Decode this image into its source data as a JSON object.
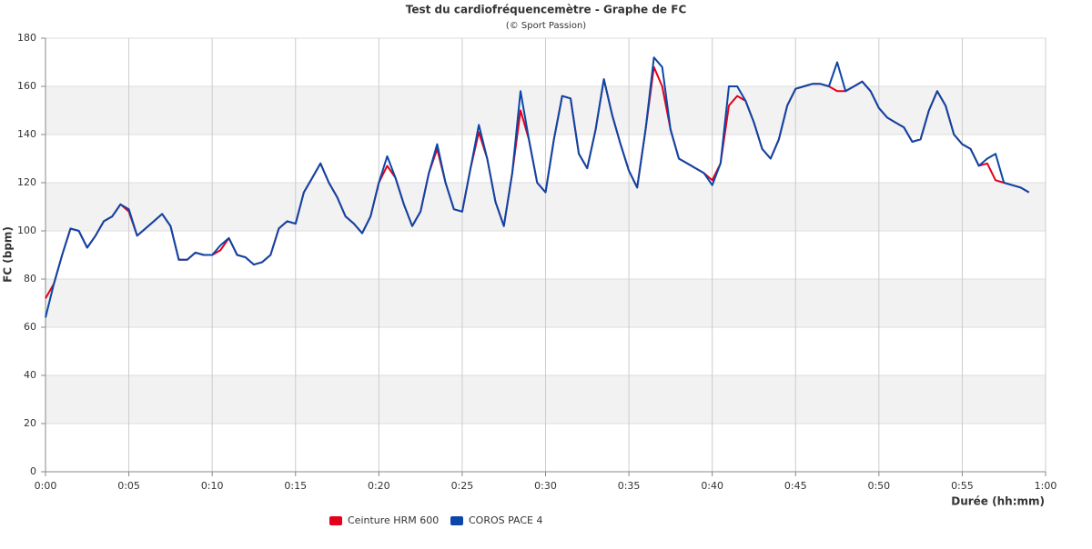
{
  "chart_data": {
    "type": "line",
    "title": "Test du cardiofréquencemètre - Graphe de FC",
    "subtitle": "(© Sport Passion)",
    "y_label": "FC (bpm)",
    "x_label": "Durée (hh:mm)",
    "x": [
      0,
      0.5,
      1,
      1.5,
      2,
      2.5,
      3,
      3.5,
      4,
      4.5,
      5,
      5.5,
      6,
      6.5,
      7,
      7.5,
      8,
      8.5,
      9,
      9.5,
      10,
      10.5,
      11,
      11.5,
      12,
      12.5,
      13,
      13.5,
      14,
      14.5,
      15,
      15.5,
      16,
      16.5,
      17,
      17.5,
      18,
      18.5,
      19,
      19.5,
      20,
      20.5,
      21,
      21.5,
      22,
      22.5,
      23,
      23.5,
      24,
      24.5,
      25,
      25.5,
      26,
      26.5,
      27,
      27.5,
      28,
      28.5,
      29,
      29.5,
      30,
      30.5,
      31,
      31.5,
      32,
      32.5,
      33,
      33.5,
      34,
      34.5,
      35,
      35.5,
      36,
      36.5,
      37,
      37.5,
      38,
      38.5,
      39,
      39.5,
      40,
      40.5,
      41,
      41.5,
      42,
      42.5,
      43,
      43.5,
      44,
      44.5,
      45,
      45.5,
      46,
      46.5,
      47,
      47.5,
      48,
      48.5,
      49,
      49.5,
      50,
      50.5,
      51,
      51.5,
      52,
      52.5,
      53,
      53.5,
      54,
      54.5,
      55,
      55.5,
      56,
      56.5,
      57,
      57.5,
      58,
      58.5,
      59
    ],
    "series": [
      {
        "name": "Ceinture HRM 600",
        "color": "#e3001b",
        "values": [
          72,
          78,
          90,
          101,
          100,
          93,
          98,
          104,
          106,
          111,
          108,
          98,
          101,
          104,
          107,
          102,
          88,
          88,
          91,
          90,
          90,
          92,
          97,
          90,
          89,
          86,
          87,
          90,
          101,
          104,
          103,
          116,
          122,
          128,
          120,
          114,
          106,
          103,
          99,
          106,
          120,
          127,
          122,
          111,
          102,
          108,
          124,
          134,
          120,
          109,
          108,
          126,
          141,
          130,
          112,
          102,
          124,
          150,
          138,
          120,
          116,
          138,
          156,
          155,
          132,
          126,
          142,
          163,
          148,
          136,
          125,
          118,
          142,
          168,
          160,
          142,
          130,
          128,
          126,
          124,
          121,
          128,
          152,
          156,
          154,
          145,
          134,
          130,
          138,
          152,
          159,
          160,
          161,
          161,
          160,
          158,
          158,
          160,
          162,
          158,
          151,
          147,
          145,
          143,
          137,
          138,
          150,
          158,
          152,
          140,
          136,
          134,
          127,
          128,
          121,
          120,
          119,
          118,
          116
        ]
      },
      {
        "name": "COROS PACE 4",
        "color": "#0a47a9",
        "values": [
          64,
          78,
          90,
          101,
          100,
          93,
          98,
          104,
          106,
          111,
          109,
          98,
          101,
          104,
          107,
          102,
          88,
          88,
          91,
          90,
          90,
          94,
          97,
          90,
          89,
          86,
          87,
          90,
          101,
          104,
          103,
          116,
          122,
          128,
          120,
          114,
          106,
          103,
          99,
          106,
          120,
          131,
          122,
          111,
          102,
          108,
          124,
          136,
          120,
          109,
          108,
          126,
          144,
          130,
          112,
          102,
          124,
          158,
          138,
          120,
          116,
          138,
          156,
          155,
          132,
          126,
          142,
          163,
          148,
          136,
          125,
          118,
          142,
          172,
          168,
          142,
          130,
          128,
          126,
          124,
          119,
          128,
          160,
          160,
          154,
          145,
          134,
          130,
          138,
          152,
          159,
          160,
          161,
          161,
          160,
          170,
          158,
          160,
          162,
          158,
          151,
          147,
          145,
          143,
          137,
          138,
          150,
          158,
          152,
          140,
          136,
          134,
          127,
          130,
          132,
          120,
          119,
          118,
          116
        ]
      }
    ],
    "xlim": [
      0,
      60
    ],
    "xticks": [
      {
        "value": 0,
        "label": "0:00"
      },
      {
        "value": 5,
        "label": "0:05"
      },
      {
        "value": 10,
        "label": "0:10"
      },
      {
        "value": 15,
        "label": "0:15"
      },
      {
        "value": 20,
        "label": "0:20"
      },
      {
        "value": 25,
        "label": "0:25"
      },
      {
        "value": 30,
        "label": "0:30"
      },
      {
        "value": 35,
        "label": "0:35"
      },
      {
        "value": 40,
        "label": "0:40"
      },
      {
        "value": 45,
        "label": "0:45"
      },
      {
        "value": 50,
        "label": "0:50"
      },
      {
        "value": 55,
        "label": "0:55"
      },
      {
        "value": 60,
        "label": "1:00"
      }
    ],
    "ylim": [
      0,
      180
    ],
    "yticks": [
      0,
      20,
      40,
      60,
      80,
      100,
      120,
      140,
      160,
      180
    ],
    "grid": true,
    "legend": "bottom"
  }
}
